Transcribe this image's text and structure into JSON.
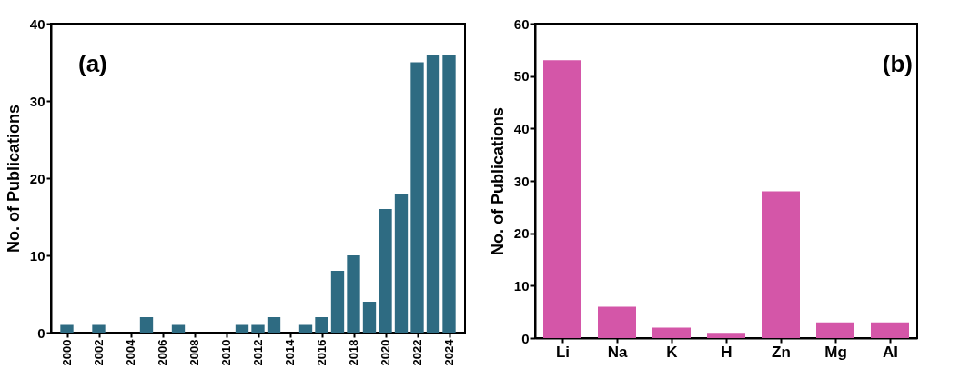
{
  "chart_data": [
    {
      "type": "bar",
      "x": [
        2000,
        2001,
        2002,
        2003,
        2004,
        2005,
        2006,
        2007,
        2008,
        2009,
        2010,
        2011,
        2012,
        2013,
        2014,
        2015,
        2016,
        2017,
        2018,
        2019,
        2020,
        2021,
        2022,
        2023,
        2024
      ],
      "values": [
        1,
        0,
        1,
        0,
        0,
        2,
        0,
        1,
        0,
        0,
        0,
        1,
        1,
        2,
        0,
        1,
        2,
        8,
        10,
        4,
        16,
        18,
        35,
        36,
        36
      ],
      "color": "#2e6b82",
      "ylabel": "No. of Publications",
      "xlim": [
        1999,
        2025
      ],
      "xticks": [
        2000,
        2002,
        2004,
        2006,
        2008,
        2010,
        2012,
        2014,
        2016,
        2018,
        2020,
        2022,
        2024
      ],
      "ylim": [
        0,
        40
      ],
      "yticks": [
        0,
        10,
        20,
        30,
        40
      ],
      "annotations": [
        "(a)"
      ],
      "grid": false,
      "legend": false
    },
    {
      "type": "bar",
      "categories": [
        "Li",
        "Na",
        "K",
        "H",
        "Zn",
        "Mg",
        "Al"
      ],
      "values": [
        53,
        6,
        2,
        1,
        28,
        3,
        3
      ],
      "color": "#d456a8",
      "ylabel": "No. of Publications",
      "ylim": [
        0,
        60
      ],
      "yticks": [
        0,
        10,
        20,
        30,
        40,
        50,
        60
      ],
      "annotations": [
        "(b)"
      ],
      "grid": false,
      "legend": false
    }
  ]
}
